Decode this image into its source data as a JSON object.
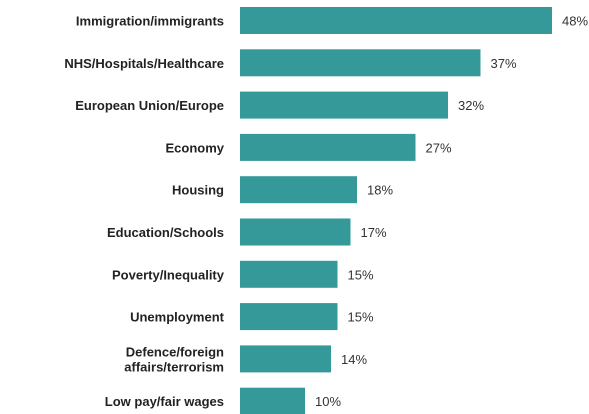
{
  "chart_data": {
    "type": "bar",
    "orientation": "horizontal",
    "categories": [
      [
        "Immigration/immigrants"
      ],
      [
        "NHS/Hospitals/Healthcare"
      ],
      [
        "European Union/Europe"
      ],
      [
        "Economy"
      ],
      [
        "Housing"
      ],
      [
        "Education/Schools"
      ],
      [
        "Poverty/Inequality"
      ],
      [
        "Unemployment"
      ],
      [
        "Defence/foreign",
        "affairs/terrorism"
      ],
      [
        "Low pay/fair wages"
      ]
    ],
    "values": [
      48,
      37,
      32,
      27,
      18,
      17,
      15,
      15,
      14,
      10
    ],
    "value_labels": [
      "48%",
      "37%",
      "32%",
      "27%",
      "18%",
      "17%",
      "15%",
      "15%",
      "14%",
      "10%"
    ],
    "unit": "%",
    "xlim": [
      0,
      48
    ],
    "bar_color": "#35999a",
    "grid": false,
    "legend": "none"
  }
}
